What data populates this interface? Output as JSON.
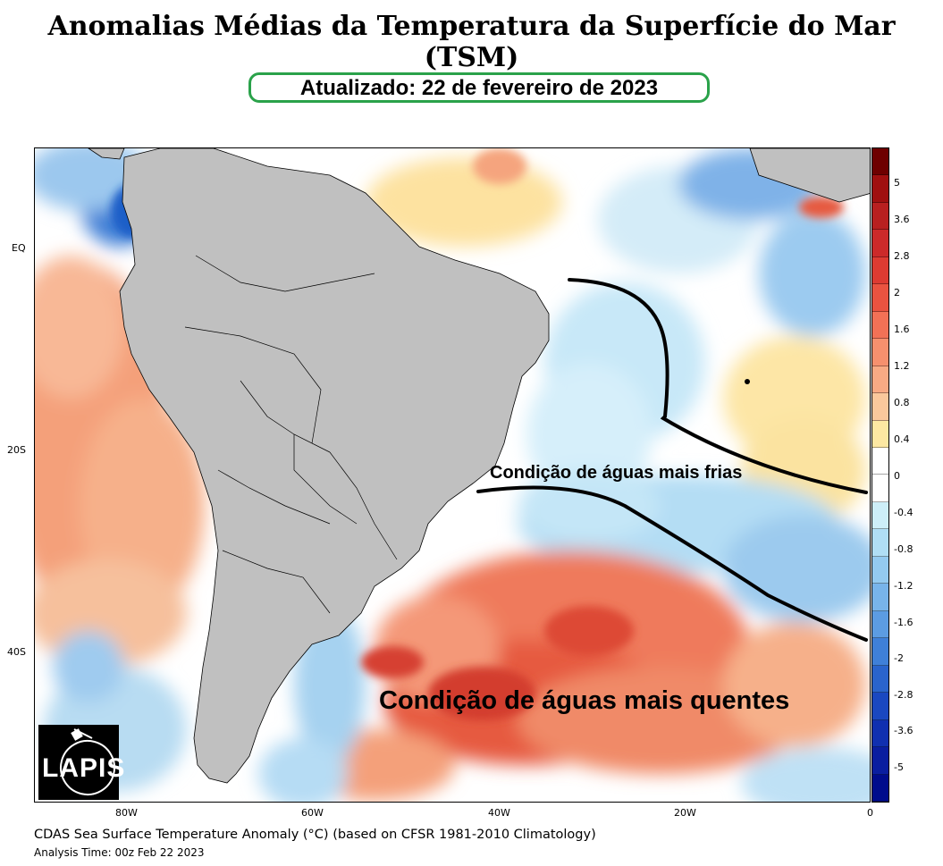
{
  "header": {
    "title": "Anomalias Médias da Temperatura da Superfície do Mar (TSM)",
    "updated": "Atualizado: 22 de fevereiro de 2023"
  },
  "map": {
    "lat_labels": [
      "EQ",
      "20S",
      "40S"
    ],
    "lon_labels": [
      "80W",
      "60W",
      "40W",
      "20W",
      "0"
    ],
    "annotation_cold": "Condição de águas mais frias",
    "annotation_warm": "Condição de águas mais quentes",
    "land_color": "#c0c0c0",
    "frontal_line_color": "#000000"
  },
  "colorbar": {
    "labels": [
      "5",
      "3.6",
      "2.8",
      "2",
      "1.6",
      "1.2",
      "0.8",
      "0.4",
      "0",
      "-0.4",
      "-0.8",
      "-1.2",
      "-1.6",
      "-2",
      "-2.8",
      "-3.6",
      "-5"
    ],
    "colors": [
      "#6e0000",
      "#a01010",
      "#b82020",
      "#cc2a2a",
      "#dd3b32",
      "#ea5340",
      "#f27156",
      "#f6906e",
      "#f8aa84",
      "#fac89c",
      "#fde8a2",
      "#ffffff",
      "#ffffff",
      "#cdeef8",
      "#b0def5",
      "#94caf0",
      "#78b4ea",
      "#5c9ce2",
      "#3f80d8",
      "#2a64cc",
      "#1a48c0",
      "#1030b0",
      "#0a1ea0",
      "#000c8c"
    ]
  },
  "logo": {
    "text": "LAPIS"
  },
  "footer": {
    "caption": "CDAS Sea Surface Temperature Anomaly (°C) (based on CFSR 1981-2010 Climatology)",
    "analysis_time": "Analysis Time: 00z Feb 22 2023"
  }
}
